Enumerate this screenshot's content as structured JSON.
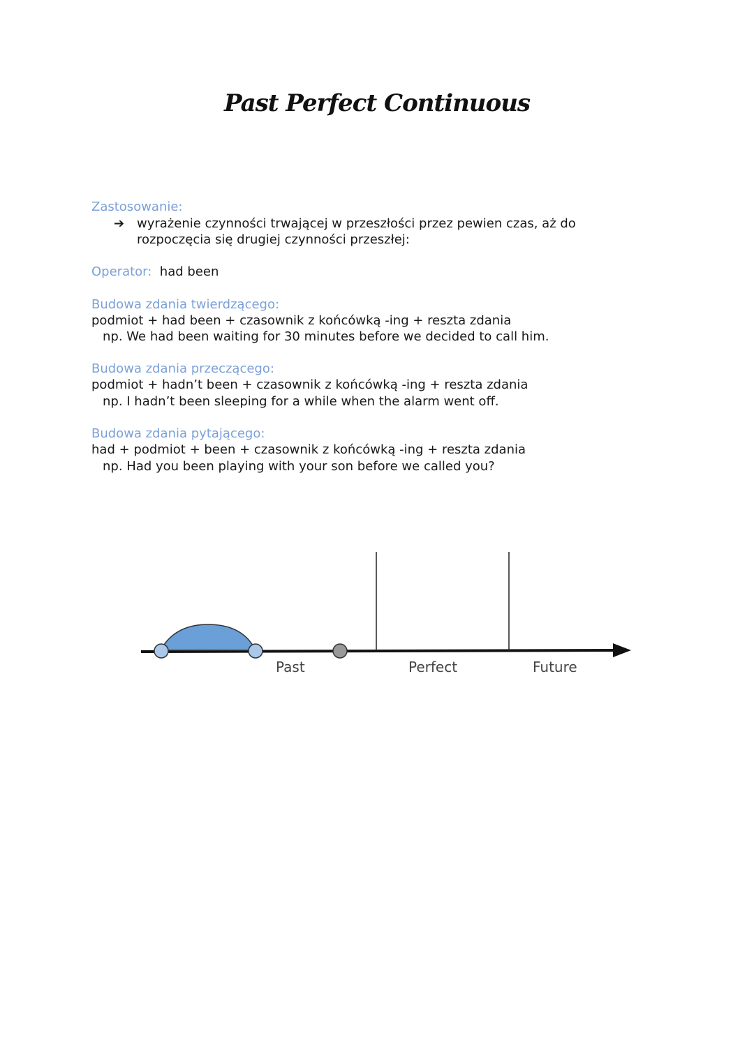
{
  "title": "Past Perfect Continuous",
  "usage": {
    "heading": "Zastosowanie:",
    "bullet_icon": "arrow-right-icon",
    "bullet_glyph": "➔",
    "line1": "wyrażenie czynności trwającej w przeszłości przez pewien czas, aż do",
    "line2": "rozpoczęcia się drugiej czynności przeszłej:"
  },
  "operator": {
    "label": "Operator:",
    "value": "had been"
  },
  "affirmative": {
    "heading": "Budowa zdania twierdzącego:",
    "formula": "podmiot + had been + czasownik z końcówką -ing + reszta zdania",
    "example": "np. We had been waiting for 30 minutes before we decided to call him."
  },
  "negative": {
    "heading": "Budowa zdania przeczącego:",
    "formula": "podmiot + hadn’t been +  czasownik z końcówką -ing + reszta zdania",
    "example": "np. I hadn’t been sleeping for a while when the alarm went off."
  },
  "question": {
    "heading": "Budowa zdania pytającego:",
    "formula": "had + podmiot + been + czasownik z końcówką -ing + reszta zdania",
    "example": "np. Had you been playing with your son before we called you?"
  },
  "timeline": {
    "labels": [
      "Past",
      "Perfect",
      "Future"
    ],
    "colors": {
      "accent": "#7ba0d8",
      "action": "#6a9fd8",
      "point": "#999999"
    }
  }
}
